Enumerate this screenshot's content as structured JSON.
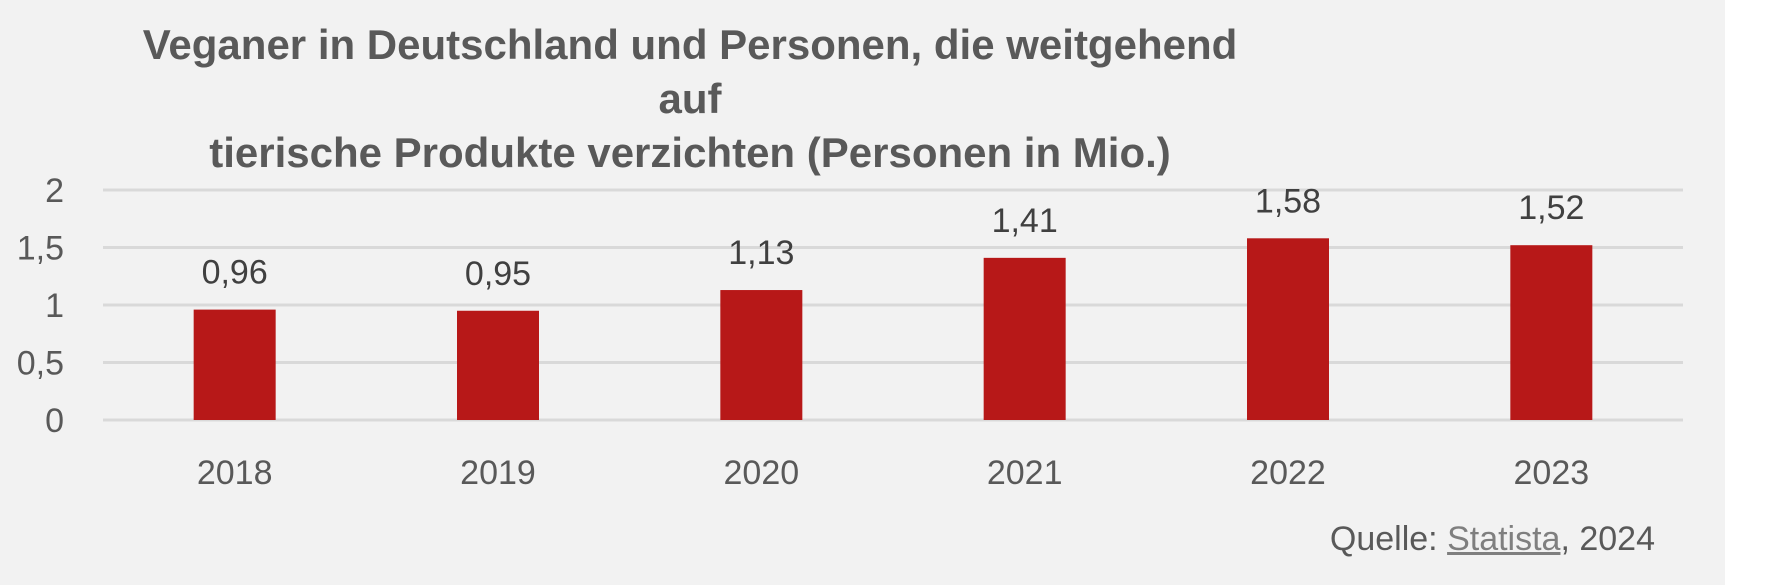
{
  "chart_data": {
    "type": "bar",
    "title": "Veganer  in Deutschland und Personen, die weitgehend auf\ntierische Produkte verzichten (Personen in Mio.)",
    "categories": [
      "2018",
      "2019",
      "2020",
      "2021",
      "2022",
      "2023"
    ],
    "values": [
      0.96,
      0.95,
      1.13,
      1.41,
      1.58,
      1.52
    ],
    "data_labels": [
      "0,96",
      "0,95",
      "1,13",
      "1,41",
      "1,58",
      "1,52"
    ],
    "yticks": [
      0,
      0.5,
      1,
      1.5,
      2
    ],
    "ytick_labels": [
      "0",
      "0,5",
      "1",
      "1,5",
      "2"
    ],
    "ylim": [
      0,
      2
    ],
    "grid": true,
    "bar_color": "#b71818",
    "xlabel": "",
    "ylabel": ""
  },
  "source": {
    "prefix": "Quelle: ",
    "link_text": "Statista",
    "suffix": ", 2024"
  }
}
